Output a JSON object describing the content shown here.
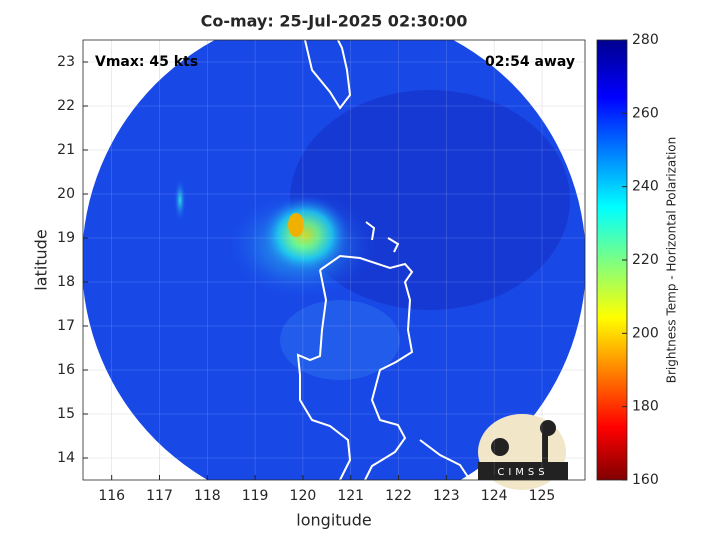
{
  "chart_data": {
    "type": "swath-map",
    "title": "Co-may: 25-Jul-2025 02:30:00",
    "xlabel": "longitude",
    "ylabel": "latitude",
    "annotations": [
      "Vmax: 45 kts",
      "02:54 away"
    ],
    "xlim": [
      115.4,
      125.9
    ],
    "xticks": [
      116,
      117,
      118,
      119,
      120,
      121,
      122,
      123,
      124,
      125
    ],
    "ylim": [
      13.5,
      23.5
    ],
    "yticks": [
      14,
      15,
      16,
      17,
      18,
      19,
      20,
      21,
      22,
      23
    ],
    "grid": true,
    "colorbar": {
      "label": "Brightness Temp - Horizontal Polarization",
      "colormap": "jet",
      "clim": [
        160,
        280
      ],
      "ticks": [
        160,
        180,
        200,
        220,
        240,
        260,
        280
      ]
    },
    "logo": "CIMSS"
  }
}
